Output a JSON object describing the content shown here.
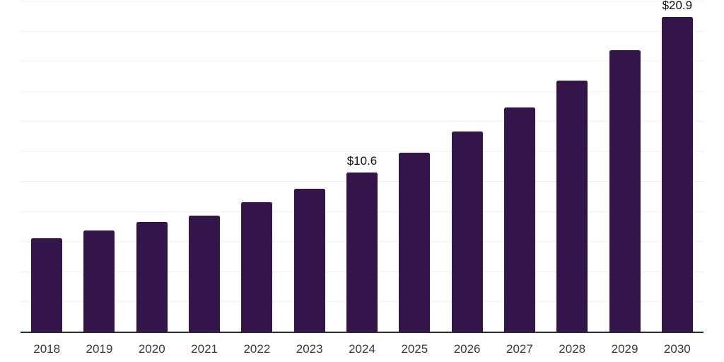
{
  "chart_data": {
    "type": "bar",
    "title": "",
    "xlabel": "",
    "ylabel": "",
    "categories": [
      "2018",
      "2019",
      "2020",
      "2021",
      "2022",
      "2023",
      "2024",
      "2025",
      "2026",
      "2027",
      "2028",
      "2029",
      "2030"
    ],
    "values": [
      6.2,
      6.7,
      7.3,
      7.7,
      8.6,
      9.5,
      10.6,
      11.9,
      13.3,
      14.9,
      16.7,
      18.7,
      20.9
    ],
    "data_labels": {
      "2024": "$10.6",
      "2030": "$20.9"
    },
    "ylim": [
      0,
      22
    ],
    "gridline_step": 2,
    "grid": true,
    "y_tick_labels_visible": false,
    "legend_position": "none"
  },
  "colors": {
    "background": "#FFFFFF",
    "bar": "#33154A",
    "grid_line": "#F0F0F2",
    "axis_line": "#2B2B33",
    "tick_label": "#3A3A3A",
    "data_label": "#101010"
  }
}
